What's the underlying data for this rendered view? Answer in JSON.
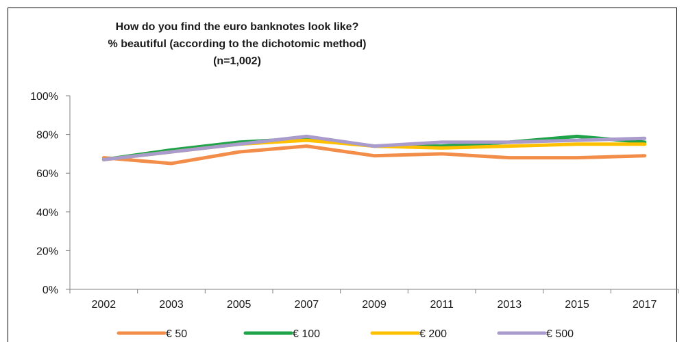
{
  "chart_data": {
    "type": "line",
    "title_lines": [
      "How do you find the euro banknotes look like?",
      "% beautiful (according to the dichotomic method)",
      "(n=1,002)"
    ],
    "xlabel": "",
    "ylabel": "",
    "categories": [
      "2002",
      "2003",
      "2005",
      "2007",
      "2009",
      "2011",
      "2013",
      "2015",
      "2017"
    ],
    "ylim": [
      0,
      100
    ],
    "y_ticks": [
      0,
      20,
      40,
      60,
      80,
      100
    ],
    "y_tick_labels": [
      "0%",
      "20%",
      "40%",
      "60%",
      "80%",
      "100%"
    ],
    "grid": false,
    "legend_position": "bottom",
    "series": [
      {
        "name": "€ 50",
        "color": "#F28E49",
        "values": [
          68,
          65,
          71,
          74,
          69,
          70,
          68,
          68,
          69
        ]
      },
      {
        "name": "€ 100",
        "color": "#1EA349",
        "values": [
          67,
          72,
          76,
          78,
          74,
          74,
          76,
          79,
          76
        ]
      },
      {
        "name": "€ 200",
        "color": "#FFC000",
        "values": [
          67,
          71,
          75,
          77,
          74,
          73,
          74,
          75,
          75
        ]
      },
      {
        "name": "€ 500",
        "color": "#A99BCB",
        "values": [
          67,
          71,
          75,
          79,
          74,
          76,
          76,
          77,
          78
        ]
      }
    ]
  }
}
